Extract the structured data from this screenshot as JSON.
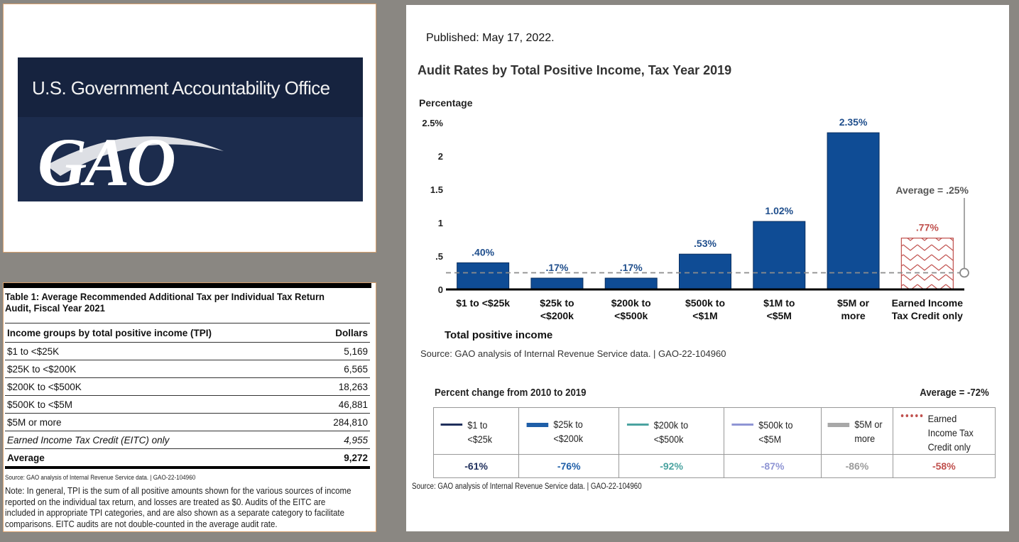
{
  "logo": {
    "org_name": "U.S. Government Accountability Office",
    "mark": "GAO",
    "colors": {
      "background": "#1c2c4d",
      "top_band": "#16233f"
    }
  },
  "table1": {
    "title": "Table 1: Average Recommended Additional Tax per Individual Tax Return Audit, Fiscal Year 2021",
    "headers": [
      "Income groups by total positive income (TPI)",
      "Dollars"
    ],
    "rows": [
      {
        "group": "$1 to <$25K",
        "dollars": "5,169"
      },
      {
        "group": "$25K to <$200K",
        "dollars": "6,565"
      },
      {
        "group": "$200K to <$500K",
        "dollars": "18,263"
      },
      {
        "group": "$500K to <$5M",
        "dollars": "46,881"
      },
      {
        "group": "$5M or more",
        "dollars": "284,810"
      },
      {
        "group": "Earned Income Tax Credit (EITC) only",
        "dollars": "4,955"
      }
    ],
    "average": {
      "label": "Average",
      "dollars": "9,272"
    },
    "source": "Source: GAO analysis of Internal Revenue Service data. | GAO-22-104960",
    "note": "Note: In general, TPI is the sum of all positive amounts shown for the various sources of income reported on the individual tax return, and losses are treated as $0. Audits of the EITC are included in appropriate TPI categories, and are also shown as a separate category to facilitate comparisons. EITC audits are not double-counted in the average audit rate."
  },
  "published": "Published: May 17, 2022.",
  "chart_data": {
    "type": "bar",
    "title": "Audit Rates by Total Positive Income, Tax Year 2019",
    "ylabel": "Percentage",
    "xlabel": "Total positive income",
    "ylim": [
      0,
      2.5
    ],
    "yticks": [
      {
        "value": 0,
        "label": "0"
      },
      {
        "value": 0.5,
        "label": ".5"
      },
      {
        "value": 1,
        "label": "1"
      },
      {
        "value": 1.5,
        "label": "1.5"
      },
      {
        "value": 2,
        "label": "2"
      },
      {
        "value": 2.5,
        "label": "2.5%"
      }
    ],
    "categories": [
      [
        "$1 to <$25k"
      ],
      [
        "$25k to",
        "<$200k"
      ],
      [
        "$200k to",
        "<$500k"
      ],
      [
        "$500k to",
        "<$1M"
      ],
      [
        "$1M to",
        "<$5M"
      ],
      [
        "$5M or",
        "more"
      ],
      [
        "Earned Income",
        "Tax Credit only"
      ]
    ],
    "values": [
      0.4,
      0.17,
      0.17,
      0.53,
      1.02,
      2.35,
      0.77
    ],
    "data_labels": [
      ".40%",
      ".17%",
      ".17%",
      ".53%",
      "1.02%",
      "2.35%",
      ".77%"
    ],
    "average": {
      "value": 0.25,
      "label": "Average = .25%"
    },
    "colors": {
      "bar": "#0f4c95",
      "eitc": "#c0504d",
      "label": "#1f4e8c",
      "average_line": "#8c8c8c"
    },
    "grid": false
  },
  "chart_source": "Source: GAO analysis of Internal Revenue Service data.  |  GAO-22-104960",
  "percent_change": {
    "title": "Percent change from 2010 to 2019",
    "average": "Average = -72%",
    "items": [
      {
        "label": "$1 to <$25k",
        "value": "-61%",
        "color": "#1f2f5c",
        "style": "solid"
      },
      {
        "label": "$25k to <$200k",
        "value": "-76%",
        "color": "#1f5fa8",
        "style": "solid"
      },
      {
        "label": "$200k to <$500k",
        "value": "-92%",
        "color": "#4aa3a0",
        "style": "solid"
      },
      {
        "label": "$500k to <$5M",
        "value": "-87%",
        "color": "#8f95d4",
        "style": "solid"
      },
      {
        "label": "$5M or more",
        "value": "-86%",
        "color": "#a8a8a8",
        "style": "solid"
      },
      {
        "label": "Earned Income Tax Credit only",
        "value": "-58%",
        "color": "#c0504d",
        "style": "dotted"
      }
    ],
    "source": "Source: GAO analysis of Internal Revenue Service data.  |  GAO-22-104960"
  }
}
